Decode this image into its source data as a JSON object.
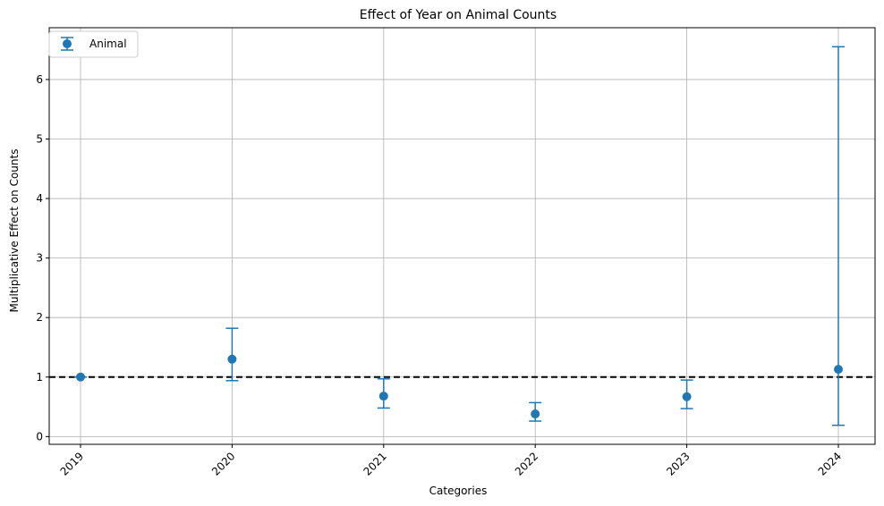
{
  "chart_data": {
    "type": "scatter",
    "title": "Effect of Year on Animal Counts",
    "xlabel": "Categories",
    "ylabel": "Multiplicative Effect on Counts",
    "categories": [
      "2019",
      "2020",
      "2021",
      "2022",
      "2023",
      "2024"
    ],
    "series": [
      {
        "name": "Animal",
        "color": "#1f77b4",
        "values": [
          1.0,
          1.3,
          0.68,
          0.38,
          0.67,
          1.13
        ],
        "lower": [
          1.0,
          0.94,
          0.48,
          0.26,
          0.47,
          0.19
        ],
        "upper": [
          1.0,
          1.82,
          0.97,
          0.57,
          0.95,
          6.55
        ]
      }
    ],
    "reference_line": {
      "y": 1,
      "style": "dashed",
      "color": "#000000"
    },
    "ylim": [
      -0.13,
      6.87
    ],
    "yticks": [
      0,
      1,
      2,
      3,
      4,
      5,
      6
    ],
    "grid": true,
    "legend_position": "top-left",
    "xtick_rotation": 45
  }
}
